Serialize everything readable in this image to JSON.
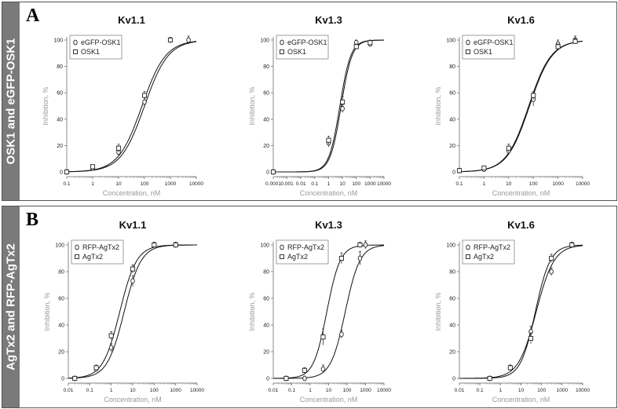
{
  "panels": [
    {
      "id": "A",
      "letter": "A",
      "side_label": "OSK1 and eGFP-OSK1",
      "charts": [
        {
          "type": "scatter",
          "title": "Kv1.1",
          "xlabel": "Concentration, nM",
          "ylabel": "Inhibition, %",
          "xscale": "log",
          "xlim": [
            0.1,
            10000
          ],
          "ylim": [
            0,
            100
          ],
          "xticks": [
            "0.1",
            "1",
            "10",
            "100",
            "1000",
            "10000"
          ],
          "yticks": [
            "0",
            "20",
            "40",
            "60",
            "80",
            "100"
          ],
          "legend": "top-left",
          "series": [
            {
              "name": "eGFP-OSK1",
              "marker": "circle",
              "x": [
                0.1,
                1,
                10,
                100,
                1000,
                5000
              ],
              "y": [
                0,
                3,
                15,
                53,
                100,
                100
              ],
              "err": [
                1,
                1,
                3,
                4,
                2,
                3
              ],
              "fit": {
                "ic50": 100,
                "n": 0.95
              }
            },
            {
              "name": "OSK1",
              "marker": "square",
              "x": [
                0.1,
                1,
                10,
                100,
                1000
              ],
              "y": [
                0,
                4,
                18,
                58,
                100
              ],
              "err": [
                1,
                1,
                3,
                3,
                2
              ],
              "fit": {
                "ic50": 80,
                "n": 0.95
              }
            }
          ]
        },
        {
          "type": "scatter",
          "title": "Kv1.3",
          "xlabel": "Concentration, nM",
          "ylabel": "Inhibition, %",
          "xscale": "log",
          "xlim": [
            0.0001,
            10000
          ],
          "ylim": [
            0,
            100
          ],
          "xticks": [
            "0.0001",
            "0.001",
            "0.01",
            "0.1",
            "1",
            "10",
            "100",
            "1000",
            "10000"
          ],
          "yticks": [
            "0",
            "20",
            "40",
            "60",
            "80",
            "100"
          ],
          "legend": "top-left",
          "series": [
            {
              "name": "eGFP-OSK1",
              "marker": "circle",
              "x": [
                0.0001,
                1,
                10,
                100,
                1000
              ],
              "y": [
                0,
                22,
                48,
                98,
                97
              ],
              "err": [
                1,
                3,
                3,
                2,
                2
              ],
              "fit": {
                "ic50": 8,
                "n": 1.1
              }
            },
            {
              "name": "OSK1",
              "marker": "square",
              "x": [
                0.0001,
                1,
                10,
                100,
                1000
              ],
              "y": [
                0,
                24,
                53,
                95,
                98
              ],
              "err": [
                1,
                3,
                4,
                2,
                2
              ],
              "fit": {
                "ic50": 6.5,
                "n": 1.1
              }
            }
          ]
        },
        {
          "type": "scatter",
          "title": "Kv1.6",
          "xlabel": "Concentration, nM",
          "ylabel": "Inhibition, %",
          "xscale": "log",
          "xlim": [
            0.1,
            10000
          ],
          "ylim": [
            0,
            100
          ],
          "xticks": [
            "0.1",
            "1",
            "10",
            "100",
            "1000",
            "10000"
          ],
          "yticks": [
            "0",
            "20",
            "40",
            "60",
            "80",
            "100"
          ],
          "legend": "top-left",
          "series": [
            {
              "name": "eGFP-OSK1",
              "marker": "circle",
              "x": [
                0.1,
                1,
                10,
                100,
                1000,
                5000
              ],
              "y": [
                1,
                2,
                16,
                55,
                97,
                100
              ],
              "err": [
                1,
                1,
                3,
                5,
                3,
                3
              ],
              "fit": {
                "ic50": 70,
                "n": 0.95
              }
            },
            {
              "name": "OSK1",
              "marker": "square",
              "x": [
                0.1,
                1,
                10,
                100,
                1000,
                5000
              ],
              "y": [
                1,
                3,
                18,
                58,
                95,
                99
              ],
              "err": [
                1,
                1,
                3,
                3,
                2,
                2
              ],
              "fit": {
                "ic50": 65,
                "n": 0.95
              }
            }
          ]
        }
      ]
    },
    {
      "id": "B",
      "letter": "B",
      "side_label": "AgTx2 and RFP-AgTx2",
      "charts": [
        {
          "type": "scatter",
          "title": "Kv1.1",
          "xlabel": "Concentration, nM",
          "ylabel": "Inhibition, %",
          "xscale": "log",
          "xlim": [
            0.01,
            10000
          ],
          "ylim": [
            0,
            100
          ],
          "xticks": [
            "0.01",
            "0.1",
            "1",
            "10",
            "100",
            "1000",
            "10000"
          ],
          "yticks": [
            "0",
            "20",
            "40",
            "60",
            "80",
            "100"
          ],
          "legend": "top-left",
          "series": [
            {
              "name": "RFP-AgTx2",
              "marker": "circle",
              "x": [
                0.02,
                0.2,
                1,
                10,
                100,
                1000
              ],
              "y": [
                0,
                7,
                23,
                73,
                100,
                100
              ],
              "err": [
                1,
                2,
                3,
                4,
                2,
                2
              ],
              "fit": {
                "ic50": 4,
                "n": 1.1
              }
            },
            {
              "name": "AgTx2",
              "marker": "square",
              "x": [
                0.02,
                0.2,
                1,
                10,
                100,
                1000
              ],
              "y": [
                0,
                8,
                32,
                82,
                100,
                100
              ],
              "err": [
                1,
                2,
                3,
                3,
                2,
                2
              ],
              "fit": {
                "ic50": 2.5,
                "n": 1.1
              }
            }
          ]
        },
        {
          "type": "scatter",
          "title": "Kv1.3",
          "xlabel": "Concentration, nM",
          "ylabel": "Inhibition, %",
          "xscale": "log",
          "xlim": [
            0.01,
            10000
          ],
          "ylim": [
            0,
            100
          ],
          "xticks": [
            "0.01",
            "0.1",
            "1",
            "10",
            "100",
            "1000",
            "10000"
          ],
          "yticks": [
            "0",
            "20",
            "40",
            "60",
            "80",
            "100"
          ],
          "legend": "top-left",
          "series": [
            {
              "name": "RFP-AgTx2",
              "marker": "circle",
              "x": [
                0.05,
                0.5,
                5,
                50,
                500,
                1000
              ],
              "y": [
                0,
                0,
                7,
                33,
                90,
                100
              ],
              "err": [
                1,
                1,
                3,
                3,
                5,
                3
              ],
              "fit": {
                "ic50": 80,
                "n": 1.1
              }
            },
            {
              "name": "AgTx2",
              "marker": "square",
              "x": [
                0.05,
                0.5,
                5,
                50,
                500
              ],
              "y": [
                0,
                6,
                31,
                90,
                100
              ],
              "err": [
                1,
                2,
                6,
                4,
                2
              ],
              "fit": {
                "ic50": 8,
                "n": 1.2
              }
            }
          ]
        },
        {
          "type": "scatter",
          "title": "Kv1.6",
          "xlabel": "Concentration, nM",
          "ylabel": "Inhibition, %",
          "xscale": "log",
          "xlim": [
            0.01,
            10000
          ],
          "ylim": [
            0,
            100
          ],
          "xticks": [
            "0.01",
            "0.1",
            "1",
            "10",
            "100",
            "1000",
            "10000"
          ],
          "yticks": [
            "0",
            "20",
            "40",
            "60",
            "80",
            "100"
          ],
          "legend": "top-left",
          "series": [
            {
              "name": "RFP-AgTx2",
              "marker": "circle",
              "x": [
                0.3,
                3,
                30,
                300,
                3000
              ],
              "y": [
                0,
                8,
                35,
                80,
                100
              ],
              "err": [
                1,
                2,
                4,
                3,
                2
              ],
              "fit": {
                "ic50": 55,
                "n": 1.0
              }
            },
            {
              "name": "AgTx2",
              "marker": "square",
              "x": [
                0.3,
                3,
                30,
                300,
                3000
              ],
              "y": [
                0,
                8,
                30,
                90,
                100
              ],
              "err": [
                1,
                2,
                4,
                3,
                2
              ],
              "fit": {
                "ic50": 50,
                "n": 1.2
              }
            }
          ]
        }
      ]
    }
  ]
}
